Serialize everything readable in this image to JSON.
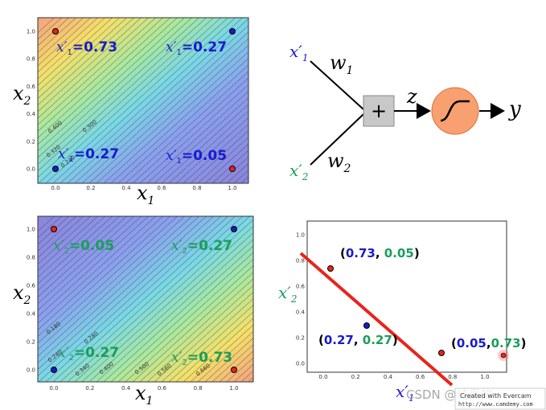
{
  "panels": {
    "top_left": {
      "x_ticks": [
        "0.0",
        "0.2",
        "0.4",
        "0.6",
        "0.8",
        "1.0"
      ],
      "y_ticks": [
        "0.0",
        "0.2",
        "0.4",
        "0.6",
        "0.8",
        "1.0"
      ],
      "contours": [
        "0.400",
        "0.300",
        "0.320",
        "0.240"
      ],
      "labels": {
        "tl": {
          "sym": "x′",
          "sub": "1",
          "val": "=0.73"
        },
        "tr": {
          "sym": "x′",
          "sub": "1",
          "val": "=0.27"
        },
        "bl": {
          "sym": "x′",
          "sub": "1",
          "val": "=0.27"
        },
        "br": {
          "sym": "x′",
          "sub": "1",
          "val": "=0.05"
        }
      },
      "xlabel": {
        "sym": "x",
        "sub": "1"
      },
      "ylabel": {
        "sym": "x",
        "sub": "2"
      }
    },
    "bottom_left": {
      "x_ticks": [
        "0.0",
        "0.2",
        "0.4",
        "0.6",
        "0.8",
        "1.0"
      ],
      "y_ticks": [
        "0.0",
        "0.2",
        "0.4",
        "0.6",
        "0.8",
        "1.0"
      ],
      "contours": [
        "0.180",
        "0.280",
        "0.240",
        "0.340",
        "0.400",
        "0.500",
        "0.560",
        "0.660"
      ],
      "labels": {
        "tl": {
          "sym": "x′",
          "sub": "2",
          "val": "=0.05"
        },
        "tr": {
          "sym": "x′",
          "sub": "2",
          "val": "=0.27"
        },
        "bl": {
          "sym": "x′",
          "sub": "2",
          "val": "=0.27"
        },
        "br": {
          "sym": "x′",
          "sub": "2",
          "val": "=0.73"
        }
      },
      "xlabel": {
        "sym": "x",
        "sub": "1"
      },
      "ylabel": {
        "sym": "x",
        "sub": "2"
      }
    },
    "neuron": {
      "input1": {
        "sym": "x′",
        "sub": "1"
      },
      "input2": {
        "sym": "x′",
        "sub": "2"
      },
      "w1": {
        "sym": "w",
        "sub": "1"
      },
      "w2": {
        "sym": "w",
        "sub": "2"
      },
      "sum": "+",
      "z": "z",
      "y": "y"
    },
    "scatter": {
      "x_ticks": [
        "0.0",
        "0.2",
        "0.4",
        "0.6",
        "0.8",
        "1.0"
      ],
      "y_ticks": [
        "0.0",
        "0.2",
        "0.4",
        "0.6",
        "0.8",
        "1.0"
      ],
      "xlabel": {
        "sym": "x′",
        "sub": "1"
      },
      "ylabel": {
        "sym": "x′",
        "sub": "2"
      },
      "pt_a": {
        "open": "(",
        "a": "0.73",
        ",": ", ",
        "b": "0.05",
        "close": ")"
      },
      "pt_b": {
        "open": "(",
        "a": "0.27",
        ",": ", ",
        "b": "0.27",
        "close": ")"
      },
      "pt_c": {
        "open": "(",
        "a": "0.05",
        ",": ",",
        "b": "0.73",
        "close": ")"
      }
    }
  },
  "watermark": {
    "csdn": "CSDN @纯真的",
    "badge": "Created with Evercam",
    "url": "http://www.camdemy.com"
  },
  "colors": {
    "blue": "#1a1acc",
    "green": "#1a9e5a",
    "red_line": "#e8241c",
    "neuron_orange": "#f8a070",
    "sum_gray": "#c8c8c8"
  }
}
